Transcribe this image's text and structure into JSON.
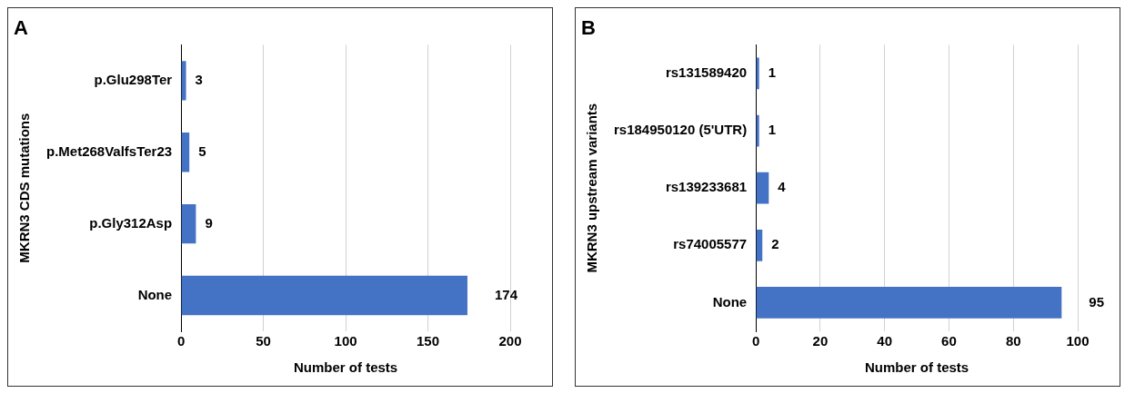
{
  "chart_data": [
    {
      "type": "bar",
      "title": "A",
      "orientation": "horizontal",
      "ylabel": "MKRN3 CDS mutations",
      "xlabel": "Number of tests",
      "categories": [
        "p.Glu298Ter",
        "p.Met268ValfsTer23",
        "p.Gly312Asp",
        "None"
      ],
      "values": [
        3,
        5,
        9,
        174
      ],
      "color": "#4472c4",
      "xlim": [
        0,
        200
      ],
      "xticks": [
        0,
        50,
        100,
        150,
        200
      ],
      "grid": "x",
      "data_labels": true,
      "legend": false
    },
    {
      "type": "bar",
      "title": "B",
      "orientation": "horizontal",
      "ylabel": "MKRN3 upstream variants",
      "xlabel": "Number of tests",
      "categories": [
        "rs131589420",
        "rs184950120 (5'UTR)",
        "rs139233681",
        "rs74005577",
        "None"
      ],
      "values": [
        1,
        1,
        4,
        2,
        95
      ],
      "color": "#4472c4",
      "xlim": [
        0,
        100
      ],
      "xticks": [
        0,
        20,
        40,
        60,
        80,
        100
      ],
      "grid": "x",
      "data_labels": true,
      "legend": false
    }
  ]
}
